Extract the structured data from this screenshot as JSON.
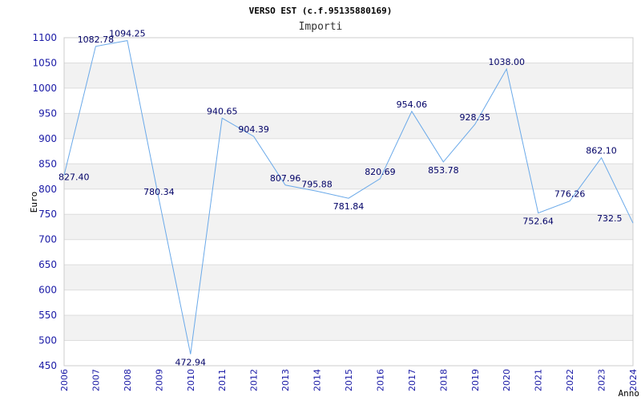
{
  "chart_data": {
    "type": "line",
    "title": "VERSO EST (c.f.95135880169)",
    "subtitle": "Importi",
    "xlabel": "Anno",
    "ylabel": "Euro",
    "ylim": [
      450,
      1100
    ],
    "yticks": [
      "450",
      "500",
      "550",
      "600",
      "650",
      "700",
      "750",
      "800",
      "850",
      "900",
      "950",
      "1000",
      "1050",
      "1100"
    ],
    "x": [
      "2006",
      "2007",
      "2008",
      "2009",
      "2010",
      "2011",
      "2012",
      "2013",
      "2014",
      "2015",
      "2016",
      "2017",
      "2018",
      "2019",
      "2020",
      "2021",
      "2022",
      "2023",
      "2024"
    ],
    "values": [
      827.4,
      1082.78,
      1094.25,
      780.34,
      472.94,
      940.65,
      904.39,
      807.96,
      795.88,
      781.84,
      820.69,
      954.06,
      853.78,
      928.35,
      1038.0,
      752.64,
      776.26,
      862.1,
      732.5
    ],
    "labels": [
      "827.40",
      "1082.78",
      "1094.25",
      "780.34",
      "472.94",
      "940.65",
      "904.39",
      "807.96",
      "795.88",
      "781.84",
      "820.69",
      "954.06",
      "853.78",
      "928.35",
      "1038.00",
      "752.64",
      "776.26",
      "862.10",
      "732.5"
    ],
    "grid": true,
    "line_color": "#6aa9e9",
    "band_color": "#f2f2f2",
    "tick_color": "#1a1aa6"
  }
}
